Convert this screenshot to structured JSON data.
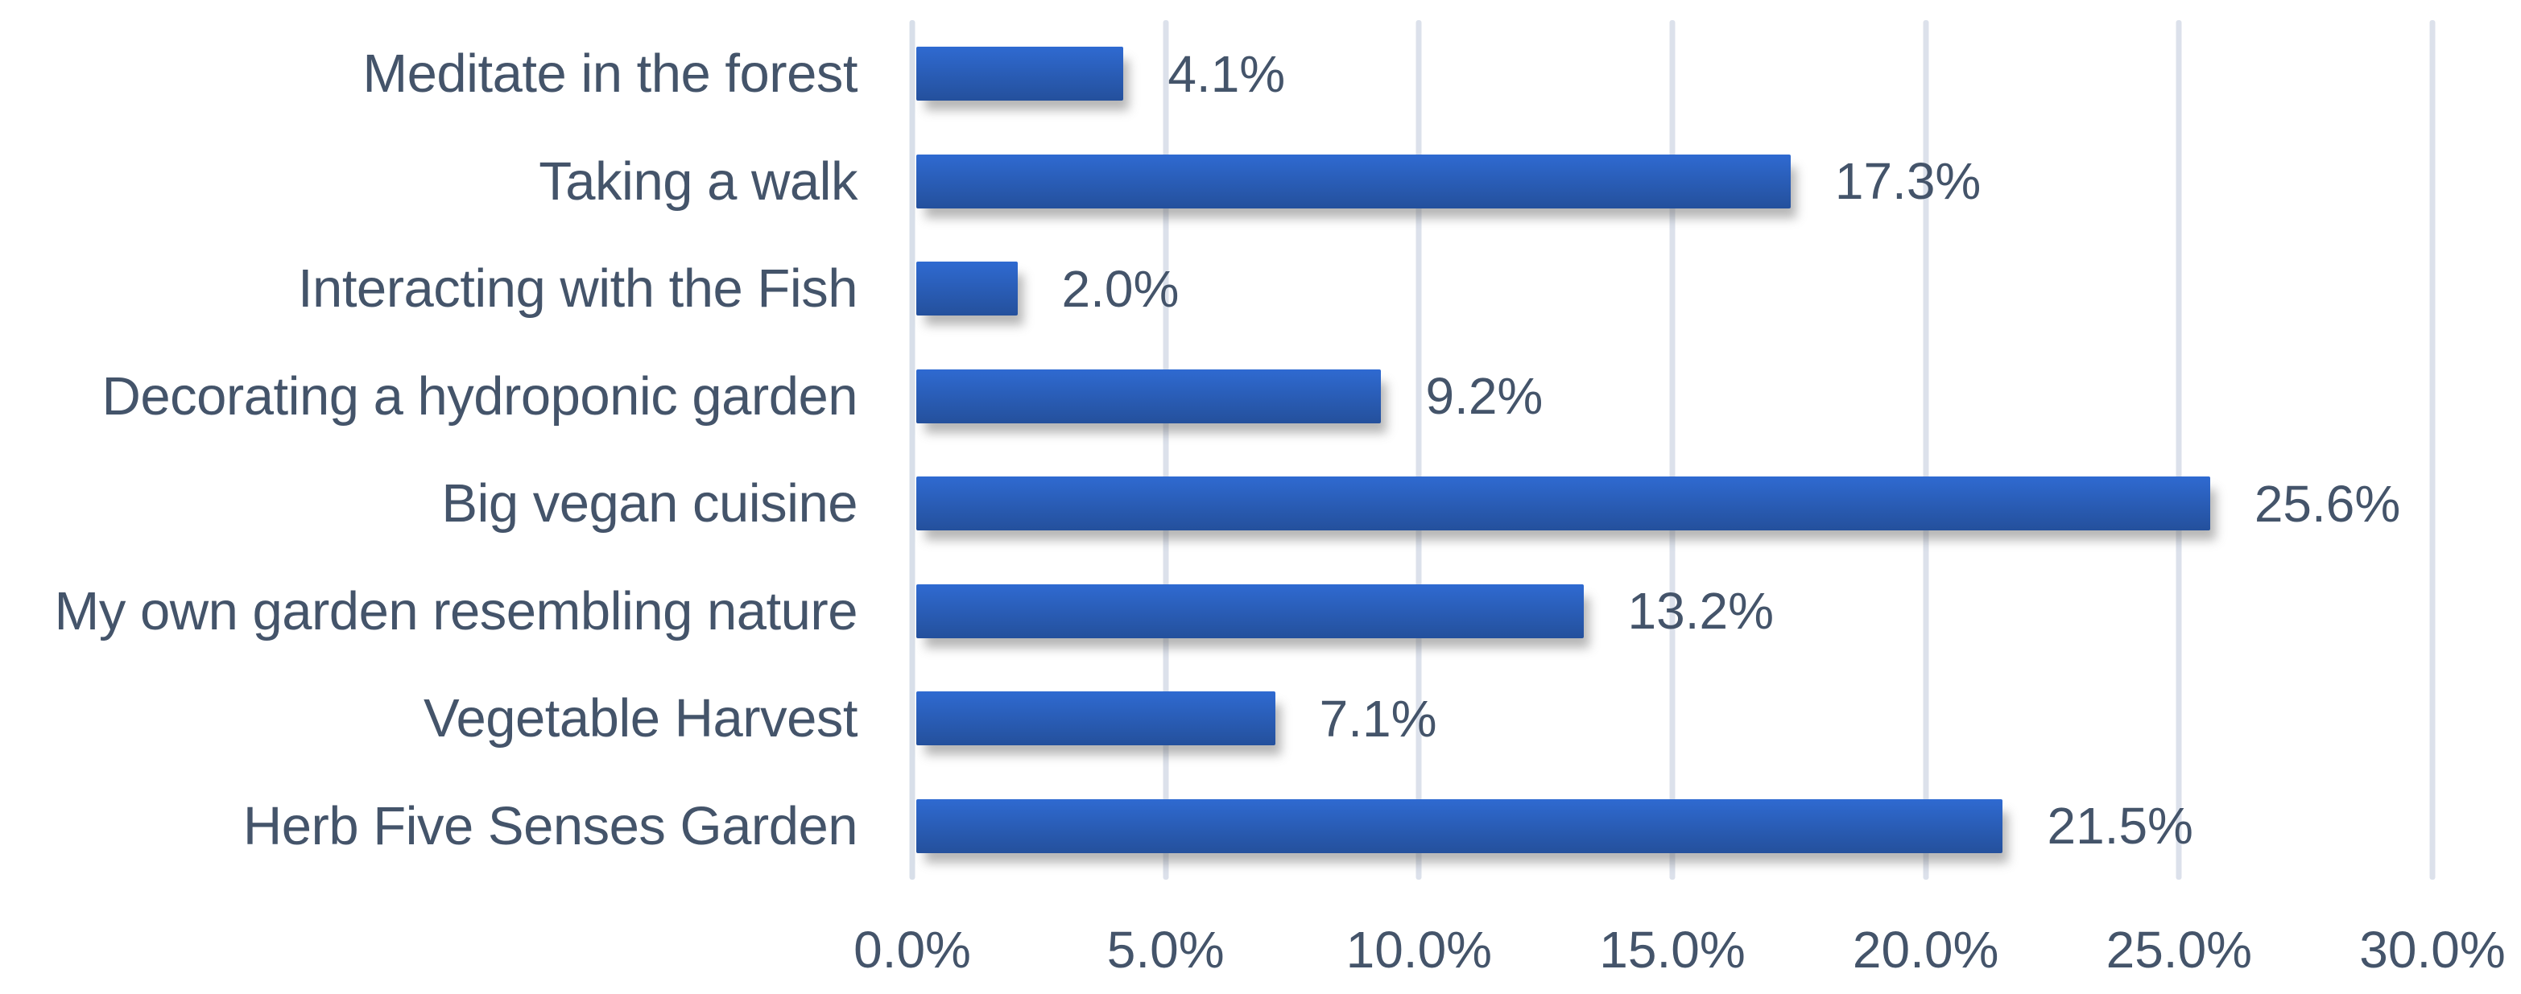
{
  "chart_data": {
    "type": "bar",
    "orientation": "horizontal",
    "title": "",
    "xlabel": "",
    "ylabel": "",
    "categories": [
      "Meditate in the forest",
      "Taking a walk",
      "Interacting with the Fish",
      "Decorating a hydroponic garden",
      "Big vegan cuisine",
      "My own garden resembling nature",
      "Vegetable Harvest",
      "Herb Five Senses Garden"
    ],
    "values": [
      4.1,
      17.3,
      2.0,
      9.2,
      25.6,
      13.2,
      7.1,
      21.5
    ],
    "value_labels": [
      "4.1%",
      "17.3%",
      "2.0%",
      "9.2%",
      "25.6%",
      "13.2%",
      "7.1%",
      "21.5%"
    ],
    "xlim": [
      0,
      30
    ],
    "x_tick_values": [
      0,
      5,
      10,
      15,
      20,
      25,
      30
    ],
    "x_tick_labels": [
      "0.0%",
      "5.0%",
      "10.0%",
      "15.0%",
      "20.0%",
      "25.0%",
      "30.0%"
    ],
    "grid": true,
    "legend": false
  },
  "style": {
    "bar_gradient_top": "#2f6ad1",
    "bar_gradient_bottom": "#24509c",
    "text_color": "#44546A",
    "gridline_color": "#dce1eb",
    "axis_line_color": "#d8dfe9",
    "background": "#ffffff"
  }
}
